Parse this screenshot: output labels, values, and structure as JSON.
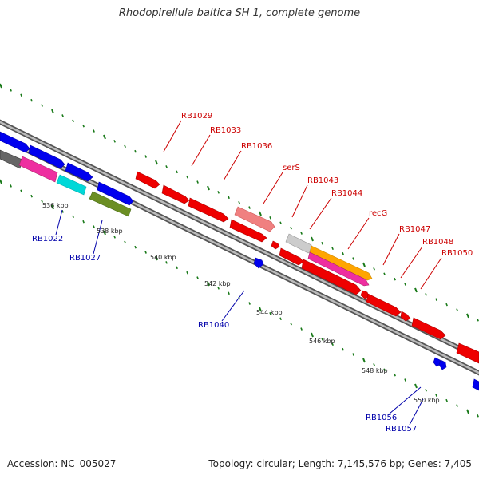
{
  "title": "Rhodopirellula baltica SH 1, complete genome",
  "footer": {
    "accession": "Accession: NC_005027",
    "summary": "Topology: circular; Length: 7,145,576 bp; Genes: 7,405"
  },
  "colors": {
    "forward_label": "#cc0000",
    "reverse_label": "#0000aa",
    "backbone": "#777777",
    "tick": "#1a7a1a"
  },
  "scale_labels": [
    "536 kbp",
    "538 kbp",
    "540 kbp",
    "542 kbp",
    "544 kbp",
    "546 kbp",
    "548 kbp",
    "550 kbp"
  ],
  "forward_gene_labels": [
    "RB1029",
    "RB1033",
    "RB1036",
    "serS",
    "RB1043",
    "RB1044",
    "recG",
    "RB1047",
    "RB1048",
    "RB1050"
  ],
  "reverse_gene_labels": [
    "RB1022",
    "RB1027",
    "RB1040",
    "RB1056",
    "RB1057"
  ],
  "gene_colors": {
    "red": "#ee0000",
    "blue": "#0000ee",
    "magenta": "#ee2ea0",
    "cyan": "#00d8d8",
    "olive": "#6b8e23",
    "salmon": "#f08080",
    "lightgray": "#cccccc",
    "darkgray": "#666666",
    "orange": "#ffa500"
  }
}
